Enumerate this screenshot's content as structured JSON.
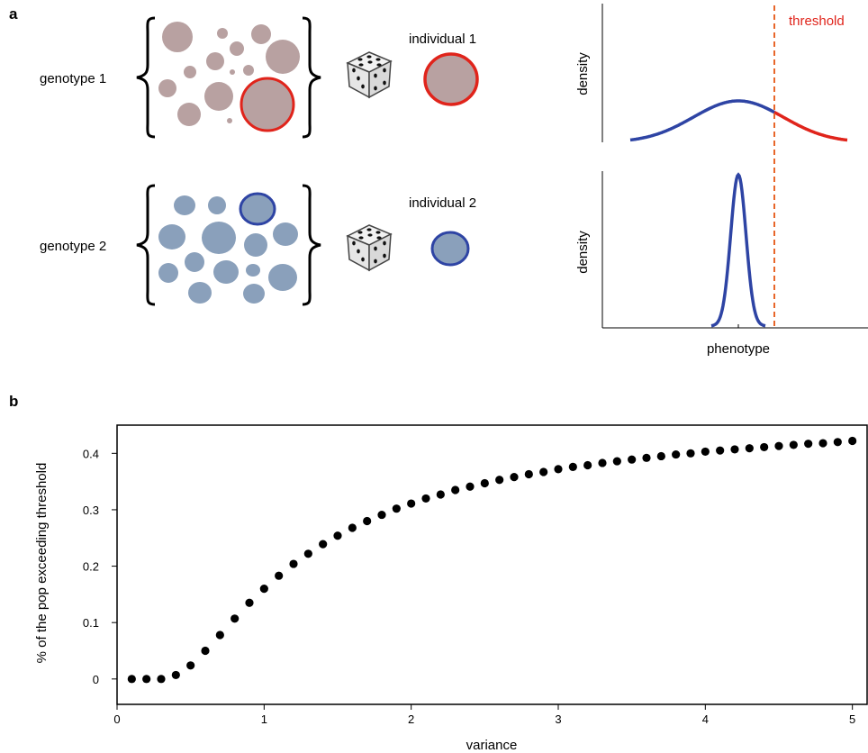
{
  "panel_a": {
    "label": "a",
    "genotype1": "genotype 1",
    "genotype2": "genotype 2",
    "individual1": "individual 1",
    "individual2": "individual 2",
    "threshold": "threshold",
    "density_top": "density",
    "density_bottom": "density",
    "phenotype": "phenotype",
    "colors": {
      "genotype1_fill": "#b8a1a1",
      "genotype2_fill": "#8aa0bb",
      "red": "#e0241b",
      "blue": "#2e44a4",
      "threshold_line": "#e8662a"
    }
  },
  "panel_b": {
    "label": "b"
  },
  "chart_data": {
    "type": "scatter",
    "title": "",
    "xlabel": "variance",
    "ylabel": "% of the pop exceeding threshold",
    "xlim": [
      0,
      5.1
    ],
    "ylim": [
      -0.045,
      0.45
    ],
    "xticks": [
      0,
      1,
      2,
      3,
      4,
      5
    ],
    "yticks": [
      0,
      0.1,
      0.2,
      0.3,
      0.4
    ],
    "grid": false,
    "x": [
      0.1,
      0.2,
      0.3,
      0.4,
      0.5,
      0.6,
      0.7,
      0.8,
      0.9,
      1.0,
      1.1,
      1.2,
      1.3,
      1.4,
      1.5,
      1.6,
      1.7,
      1.8,
      1.9,
      2.0,
      2.1,
      2.2,
      2.3,
      2.4,
      2.5,
      2.6,
      2.7,
      2.8,
      2.9,
      3.0,
      3.1,
      3.2,
      3.3,
      3.4,
      3.5,
      3.6,
      3.7,
      3.8,
      3.9,
      4.0,
      4.1,
      4.2,
      4.3,
      4.4,
      4.5,
      4.6,
      4.7,
      4.8,
      4.9,
      5.0
    ],
    "y": [
      0.0,
      0.0,
      0.0,
      0.007,
      0.024,
      0.05,
      0.078,
      0.107,
      0.135,
      0.16,
      0.183,
      0.204,
      0.222,
      0.239,
      0.254,
      0.268,
      0.28,
      0.291,
      0.302,
      0.311,
      0.32,
      0.327,
      0.335,
      0.341,
      0.347,
      0.353,
      0.358,
      0.363,
      0.367,
      0.372,
      0.376,
      0.379,
      0.383,
      0.386,
      0.389,
      0.392,
      0.395,
      0.398,
      0.4,
      0.403,
      0.405,
      0.407,
      0.409,
      0.411,
      0.413,
      0.415,
      0.417,
      0.418,
      0.42,
      0.422
    ]
  }
}
